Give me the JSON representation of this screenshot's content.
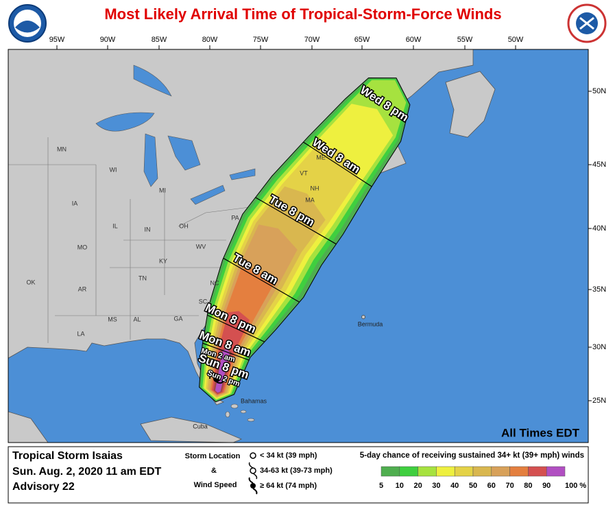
{
  "header": {
    "title": "Most Likely Arrival Time of Tropical-Storm-Force Winds"
  },
  "map": {
    "longitudes": [
      "95W",
      "90W",
      "85W",
      "80W",
      "75W",
      "70W",
      "65W",
      "60W",
      "55W",
      "50W"
    ],
    "latitudes": [
      "50N",
      "45N",
      "40N",
      "35N",
      "30N",
      "25N"
    ],
    "states": [
      "MN",
      "WI",
      "MI",
      "IA",
      "IL",
      "IN",
      "OH",
      "MO",
      "KY",
      "WV",
      "OK",
      "AR",
      "TN",
      "MS",
      "AL",
      "GA",
      "LA",
      "NC",
      "SC",
      "PA",
      "VT",
      "NH",
      "ME",
      "MA"
    ],
    "places": [
      "Bermuda",
      "Bahamas",
      "Cuba"
    ],
    "times": [
      "Wed 8 pm",
      "Wed 8 am",
      "Tue 8 pm",
      "Tue 8 am",
      "Mon 8 pm",
      "Mon 8 am",
      "Mon 2 am",
      "Sun 8 pm",
      "Sun 2 pm"
    ],
    "time_zone_note": "All Times EDT"
  },
  "footer": {
    "storm": {
      "name": "Tropical Storm Isaias",
      "date": "Sun. Aug. 2, 2020  11 am EDT",
      "advisory": "Advisory 22"
    },
    "location_legend": {
      "title": "Storm Location",
      "joiner": "&",
      "subtitle": "Wind Speed",
      "entries": [
        "< 34 kt (39 mph)",
        "34-63 kt (39-73 mph)",
        "≥ 64 kt (74 mph)"
      ]
    },
    "probability": {
      "title": "5-day chance of receiving sustained 34+ kt (39+ mph) winds",
      "labels": [
        "5",
        "10",
        "20",
        "30",
        "40",
        "50",
        "60",
        "70",
        "80",
        "90",
        "100 %"
      ],
      "colors": [
        "#4fae4f",
        "#3fcf3f",
        "#a6e23f",
        "#eef03f",
        "#e4d247",
        "#d9b74f",
        "#d8a15a",
        "#e47f3f",
        "#d45050",
        "#a04646",
        "#b14fc2"
      ]
    }
  }
}
